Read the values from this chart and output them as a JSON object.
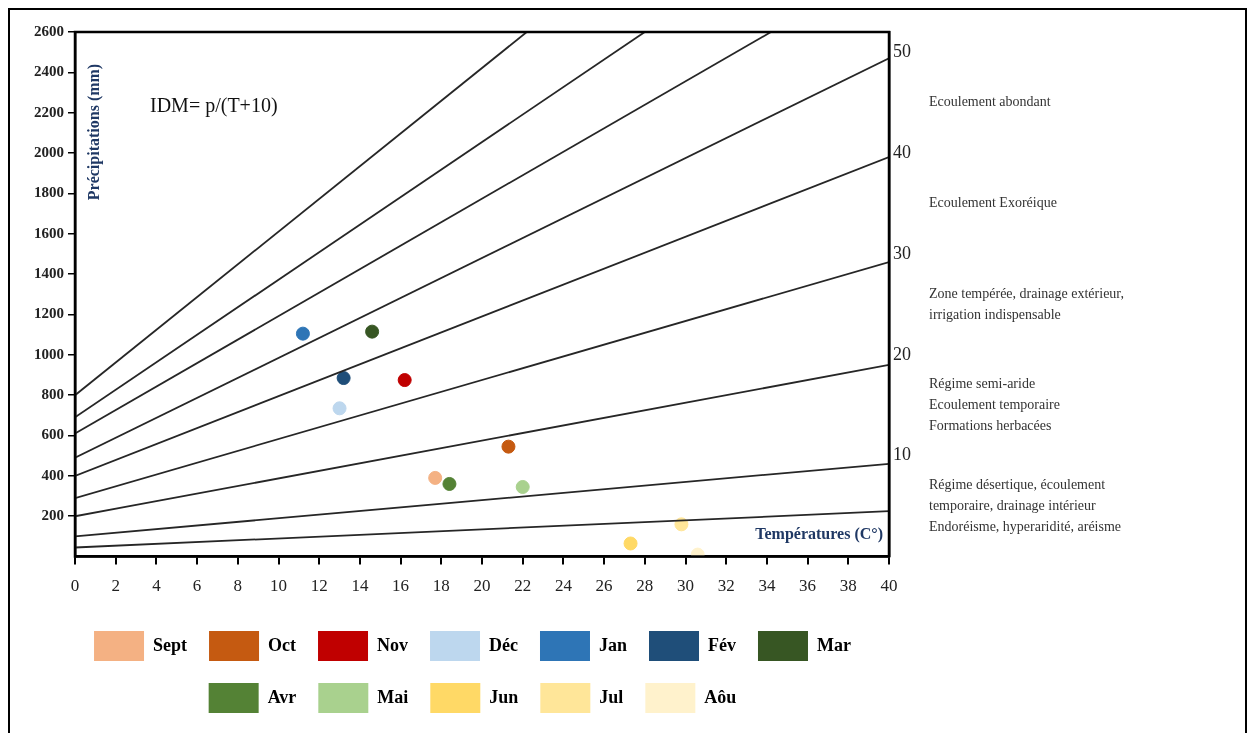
{
  "chart_data": {
    "type": "scatter",
    "xlabel": "Températures (C°)",
    "ylabel": "Précipitations (mm)",
    "xlim": [
      0,
      40
    ],
    "xticks": [
      0,
      2,
      4,
      6,
      8,
      10,
      12,
      14,
      16,
      18,
      20,
      22,
      24,
      26,
      28,
      30,
      32,
      34,
      36,
      38,
      40
    ],
    "ylim": [
      0,
      2600
    ],
    "yticks": [
      200,
      400,
      600,
      800,
      1000,
      1200,
      1400,
      1600,
      1800,
      2000,
      2200,
      2400,
      2600
    ],
    "y2lim": [
      0,
      52
    ],
    "y2ticks": [
      10,
      20,
      30,
      40,
      50
    ],
    "marker": "circle",
    "legend": "bottom",
    "annotations": [
      "IDM= p/(T+10)",
      "Ecoulement abondant",
      "Ecoulement Exoréique",
      "Zone tempérée, drainage extérieur,\nirrigation indispensable",
      "Régime semi-aride\nEcoulement temporaire\nFormations herbacées",
      "Régime désertique, écoulement\ntemporaire, drainage intérieur\nEndoréisme, hyperaridité, aréisme"
    ],
    "series": [
      {
        "type": "line",
        "marker": "none",
        "color": "#262626",
        "x": [
          0,
          40
        ],
        "values": [
          45,
          225
        ]
      },
      {
        "type": "line",
        "marker": "none",
        "color": "#262626",
        "x": [
          0,
          40
        ],
        "values": [
          100,
          460
        ]
      },
      {
        "type": "line",
        "marker": "none",
        "color": "#262626",
        "x": [
          0,
          40
        ],
        "values": [
          200,
          950
        ]
      },
      {
        "type": "line",
        "marker": "none",
        "color": "#262626",
        "x": [
          0,
          40
        ],
        "values": [
          290,
          1460
        ]
      },
      {
        "type": "line",
        "marker": "none",
        "color": "#262626",
        "x": [
          0,
          40
        ],
        "values": [
          400,
          1980
        ]
      },
      {
        "type": "line",
        "marker": "none",
        "color": "#262626",
        "x": [
          0,
          40
        ],
        "values": [
          490,
          2470
        ]
      },
      {
        "type": "line",
        "marker": "none",
        "color": "#262626",
        "x": [
          0,
          34.2
        ],
        "values": [
          610,
          2600
        ]
      },
      {
        "type": "line",
        "marker": "none",
        "color": "#262626",
        "x": [
          0,
          28
        ],
        "values": [
          690,
          2600
        ]
      },
      {
        "type": "line",
        "marker": "none",
        "color": "#262626",
        "x": [
          0,
          22.2
        ],
        "values": [
          800,
          2600
        ]
      },
      {
        "name": "Sept",
        "color": "#f4b183",
        "x": [
          17.7
        ],
        "values": [
          390
        ]
      },
      {
        "name": "Oct",
        "color": "#c55a11",
        "x": [
          21.3
        ],
        "values": [
          545
        ]
      },
      {
        "name": "Nov",
        "color": "#c00000",
        "x": [
          16.2
        ],
        "values": [
          875
        ]
      },
      {
        "name": "Déc",
        "color": "#bdd7ee",
        "x": [
          13.0
        ],
        "values": [
          735
        ]
      },
      {
        "name": "Jan",
        "color": "#2e75b6",
        "x": [
          11.2
        ],
        "values": [
          1105
        ]
      },
      {
        "name": "Fév",
        "color": "#1f4e79",
        "x": [
          13.2
        ],
        "values": [
          885
        ]
      },
      {
        "name": "Mar",
        "color": "#375623",
        "x": [
          14.6
        ],
        "values": [
          1115
        ]
      },
      {
        "name": "Avr",
        "color": "#548235",
        "x": [
          18.4
        ],
        "values": [
          360
        ]
      },
      {
        "name": "Mai",
        "color": "#a9d18e",
        "x": [
          22.0
        ],
        "values": [
          345
        ]
      },
      {
        "name": "Jun",
        "color": "#ffd966",
        "x": [
          27.3
        ],
        "values": [
          65
        ]
      },
      {
        "name": "Jul",
        "color": "#ffe699",
        "x": [
          29.8
        ],
        "values": [
          160
        ]
      },
      {
        "name": "Aôu",
        "color": "#fff2cc",
        "x": [
          30.6
        ],
        "values": [
          10
        ]
      }
    ]
  }
}
